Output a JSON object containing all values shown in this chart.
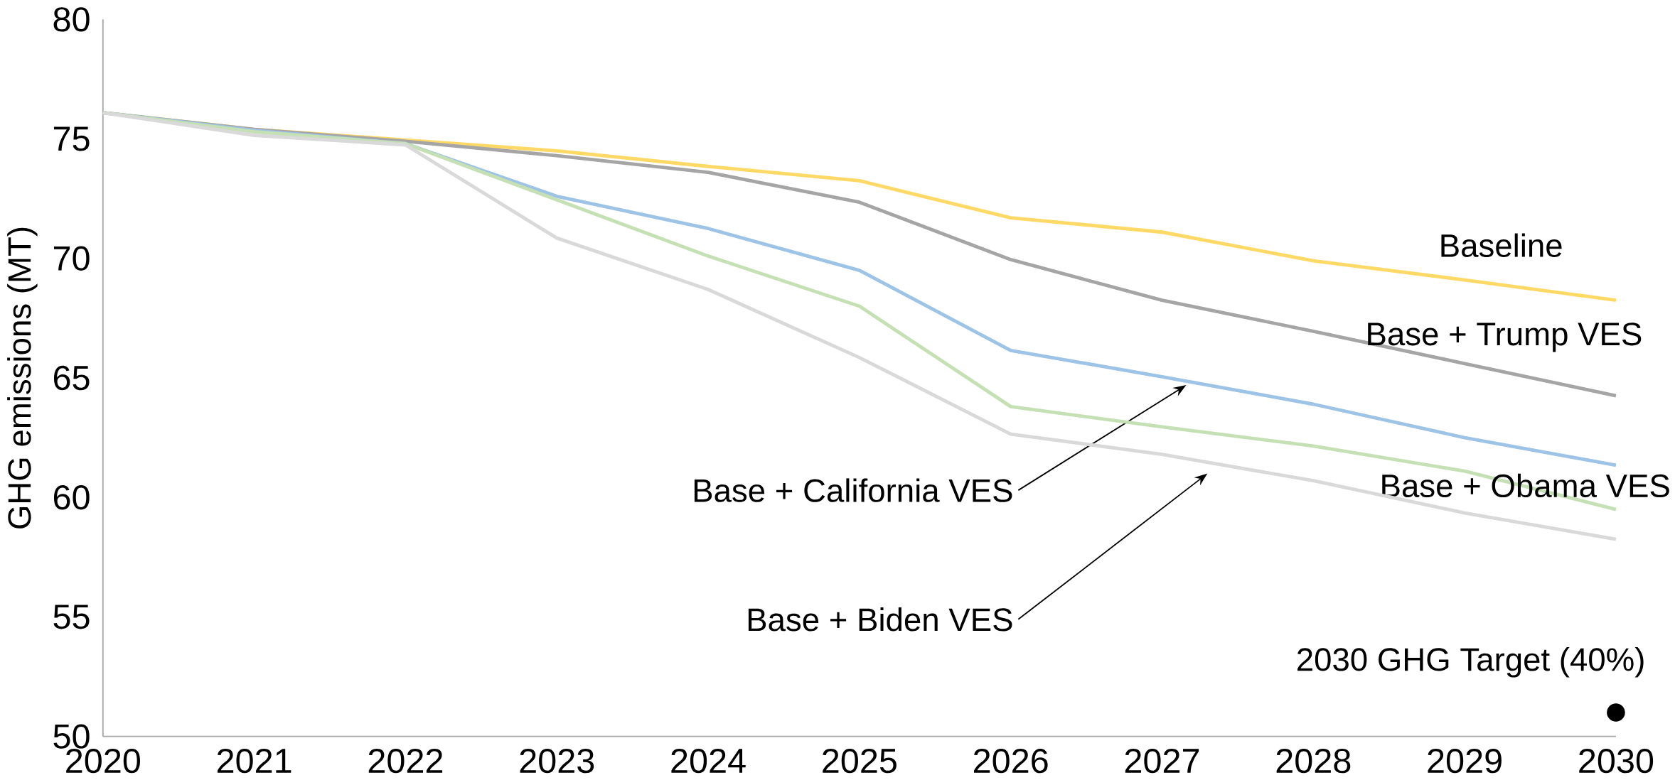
{
  "chart_data": {
    "type": "line",
    "ylabel": "GHG emissions (MT)",
    "x": [
      2020,
      2021,
      2022,
      2023,
      2024,
      2025,
      2026,
      2027,
      2028,
      2029,
      2030
    ],
    "xlim": [
      2020,
      2030
    ],
    "xticks": [
      2020,
      2021,
      2022,
      2023,
      2024,
      2025,
      2026,
      2027,
      2028,
      2029,
      2030
    ],
    "ylim": [
      50,
      80
    ],
    "yticks": [
      50,
      55,
      60,
      65,
      70,
      75,
      80
    ],
    "grid": false,
    "legend": false,
    "series": [
      {
        "name": "Baseline",
        "color": "#ffd966",
        "values": [
          76.1,
          75.4,
          74.95,
          74.5,
          73.85,
          73.25,
          71.7,
          71.1,
          69.9,
          69.1,
          68.25
        ]
      },
      {
        "name": "Base + Trump VES",
        "color": "#a5a5a5",
        "values": [
          76.1,
          75.4,
          74.9,
          74.3,
          73.6,
          72.35,
          69.95,
          68.25,
          66.95,
          65.6,
          64.25
        ]
      },
      {
        "name": "Base + California VES",
        "color": "#9dc3e6",
        "values": [
          76.1,
          75.35,
          74.8,
          72.6,
          71.25,
          69.5,
          66.15,
          65.05,
          63.9,
          62.5,
          61.35
        ]
      },
      {
        "name": "Base + Obama VES",
        "color": "#c5e0b4",
        "values": [
          76.1,
          75.3,
          74.8,
          72.45,
          70.1,
          68.0,
          63.8,
          62.95,
          62.15,
          61.1,
          59.5
        ]
      },
      {
        "name": "Base + Biden VES",
        "color": "#d9d9d9",
        "values": [
          76.1,
          75.15,
          74.75,
          70.85,
          68.7,
          65.85,
          62.65,
          61.8,
          60.7,
          59.35,
          58.25
        ]
      },
      {
        "name": "2030 GHG Target (40%)",
        "type": "scatter",
        "marker": "circle",
        "color": "#000000",
        "x": [
          2030
        ],
        "values": [
          51.0
        ]
      }
    ]
  }
}
